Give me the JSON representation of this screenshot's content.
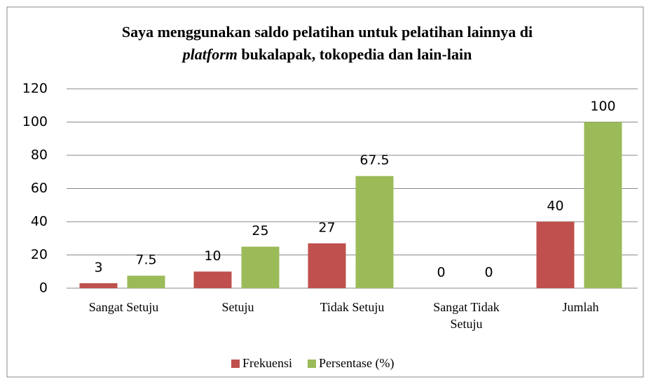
{
  "chart_data": {
    "type": "bar",
    "title": [
      "Saya menggunakan saldo pelatihan untuk pelatihan lainnya di",
      "platform",
      "bukalapak, tokopedia dan lain-lain"
    ],
    "categories": [
      "Sangat Setuju",
      "Setuju",
      "Tidak Setuju",
      "Sangat Tidak Setuju",
      "Jumlah"
    ],
    "series": [
      {
        "name": "Frekuensi",
        "color": "#c0504d",
        "values": [
          3,
          10,
          27,
          0,
          40
        ]
      },
      {
        "name": "Persentase (%)",
        "color": "#9bbb59",
        "values": [
          7.5,
          25,
          67.5,
          0,
          100
        ]
      }
    ],
    "ylim": [
      0,
      120
    ],
    "yticks": [
      0,
      20,
      40,
      60,
      80,
      100,
      120
    ],
    "grid": true,
    "legend": "bottom"
  }
}
